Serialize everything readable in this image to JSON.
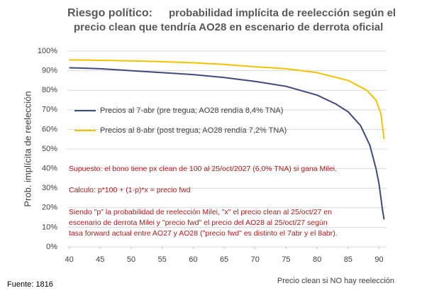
{
  "chart_data": {
    "type": "line",
    "title": [
      "Riesgo político:",
      "probabilidad implícita de reelección según el",
      "precio clean que tendría AO28 en escenario de derrota oficial"
    ],
    "y_label": "Prob. implícita de reelección",
    "x_label": "Precio clean si NO hay reelección",
    "source": "Fuente: 1816",
    "annotations": [
      "Supuesto: el bono tiene px clean de 100 al 25/oct/2027 (6,0% TNA) si gana Milei.",
      "Calculo: p*100 + (1-p)*x = precio fwd",
      "Siendo \"p\" la probabilidad de reelección Milei, \"x\" el precio clean al 25/oct/27 en",
      "escenario de derrota Milei y \"precio fwd\" el precio del AO28 al 25/oct/27 según",
      "tasa forward actual entre AO27 y AO28 (\"precio fwd\" es distinto el 7abr y el 8abr)."
    ],
    "xlim": [
      39.7,
      91.2
    ],
    "xticks": [
      40,
      45,
      50,
      55,
      60,
      65,
      70,
      75,
      80,
      85,
      90
    ],
    "ylim": [
      0,
      100
    ],
    "yticks": [
      {
        "value": 0,
        "label": "0%"
      },
      {
        "value": 10,
        "label": "10%"
      },
      {
        "value": 20,
        "label": "20%"
      },
      {
        "value": 30,
        "label": "30%"
      },
      {
        "value": 40,
        "label": "40%"
      },
      {
        "value": 50,
        "label": "50%"
      },
      {
        "value": 60,
        "label": "60%"
      },
      {
        "value": 70,
        "label": "70%"
      },
      {
        "value": 80,
        "label": "80%"
      },
      {
        "value": 90,
        "label": "90%"
      },
      {
        "value": 100,
        "label": "100%"
      }
    ],
    "grid": true,
    "series": [
      {
        "name": "Precios al 7-abr (pre tregua; AO28 rendía 8,4% TNA)",
        "color": "#404a7a",
        "x": [
          40,
          45,
          50,
          55,
          60,
          65,
          70,
          75,
          80,
          83,
          85,
          87,
          88.5,
          89.5,
          90,
          90.5,
          90.8
        ],
        "values": [
          91.5,
          91,
          90,
          89,
          88,
          86.5,
          84.5,
          82,
          77.5,
          73,
          69,
          62,
          52,
          40,
          32,
          20,
          14
        ]
      },
      {
        "name": "Precios al 8-abr (post tregua; AO28 rendía 7,2% TNA)",
        "color": "#f2c200",
        "x": [
          40,
          45,
          50,
          55,
          60,
          65,
          70,
          75,
          80,
          85,
          88,
          89.5,
          90.3,
          90.8
        ],
        "values": [
          95.5,
          95.3,
          95,
          94.6,
          94,
          93.2,
          92,
          91,
          89,
          85,
          80,
          75,
          68,
          55
        ]
      }
    ]
  }
}
